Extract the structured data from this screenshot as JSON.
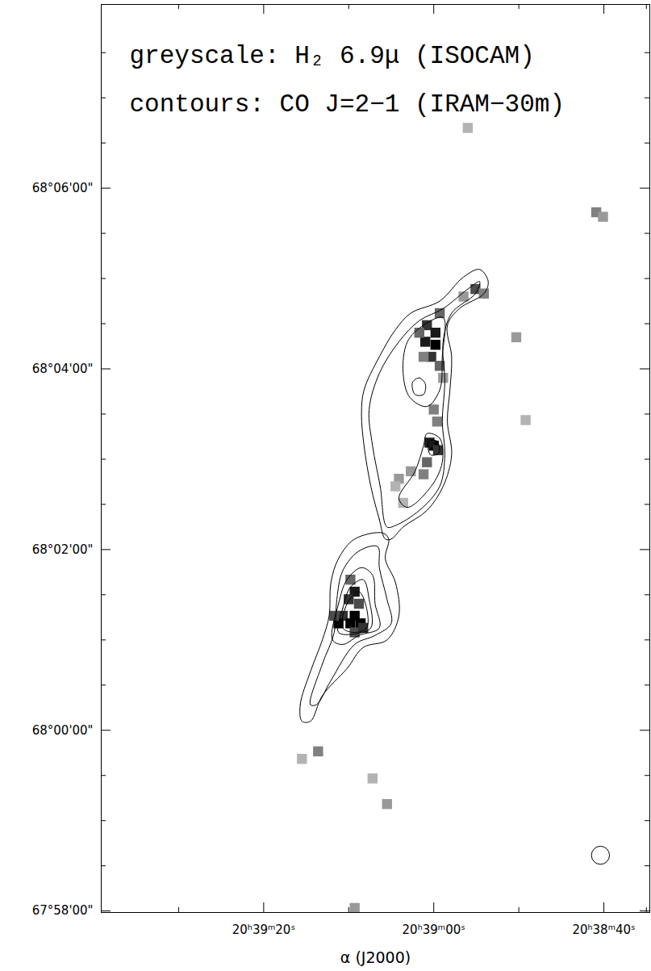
{
  "chart_data": {
    "type": "contour_map",
    "annotations": [
      "greyscale: H₂ 6.9μ (ISOCAM)",
      "contours: CO J=2−1 (IRAM−30m)"
    ],
    "xlabel": "α (J2000)",
    "xlim": [
      74379.1,
      74314.6
    ],
    "ylim": [
      244679,
      245282
    ],
    "xticks": [
      {
        "value": 74360,
        "label": "20ʰ39ᵐ20ˢ"
      },
      {
        "value": 74340,
        "label": "20ʰ39ᵐ00ˢ"
      },
      {
        "value": 74320,
        "label": "20ʰ38ᵐ40ˢ"
      }
    ],
    "yticks": [
      {
        "value": 245160,
        "label": "68°06'00\""
      },
      {
        "value": 245040,
        "label": "68°04'00\""
      },
      {
        "value": 244920,
        "label": "68°02'00\""
      },
      {
        "value": 244800,
        "label": "68°00'00\""
      },
      {
        "value": 244680,
        "label": "67°58'00\""
      }
    ],
    "xminor": [
      74370,
      74350,
      74330,
      74315
    ],
    "yminor": [
      244710,
      244740,
      244770,
      244830,
      244860,
      244890,
      244950,
      244980,
      245010,
      245070,
      245100,
      245130,
      245190,
      245220,
      245250
    ],
    "h2_intensity_range": [
      0,
      1
    ],
    "h2_map": [
      [
        74335.1,
        245093,
        0.7
      ],
      [
        74334.1,
        245090,
        0.5
      ],
      [
        74336.5,
        245088,
        0.4
      ],
      [
        74339.3,
        245077,
        0.6
      ],
      [
        74340.8,
        245069,
        0.8
      ],
      [
        74339.8,
        245064,
        0.9
      ],
      [
        74341.0,
        245058,
        0.9
      ],
      [
        74339.8,
        245056,
        1.0
      ],
      [
        74340.3,
        245048,
        0.8
      ],
      [
        74339.3,
        245042,
        0.6
      ],
      [
        74338.9,
        245034,
        0.4
      ],
      [
        74341.7,
        245064,
        0.6
      ],
      [
        74341.2,
        245048,
        0.5
      ],
      [
        74340.0,
        245013,
        0.5
      ],
      [
        74339.6,
        245005,
        0.5
      ],
      [
        74340.0,
        244989,
        1.0
      ],
      [
        74340.5,
        244991,
        0.9
      ],
      [
        74339.5,
        244986,
        0.8
      ],
      [
        74340.8,
        244978,
        0.6
      ],
      [
        74341.2,
        244970,
        0.5
      ],
      [
        74342.7,
        244972,
        0.4
      ],
      [
        74344.1,
        244967,
        0.4
      ],
      [
        74344.5,
        244962,
        0.3
      ],
      [
        74343.6,
        244951,
        0.3
      ],
      [
        74330.3,
        245061,
        0.4
      ],
      [
        74329.2,
        245006,
        0.3
      ],
      [
        74336.0,
        245200,
        0.3
      ],
      [
        74320.9,
        245144,
        0.5
      ],
      [
        74320.1,
        245141,
        0.4
      ],
      [
        74349.8,
        244900,
        0.6
      ],
      [
        74349.3,
        244892,
        0.9
      ],
      [
        74350.0,
        244887,
        0.8
      ],
      [
        74350.7,
        244876,
        0.8
      ],
      [
        74351.2,
        244871,
        1.0
      ],
      [
        74349.8,
        244871,
        1.0
      ],
      [
        74348.6,
        244871,
        1.0
      ],
      [
        74349.3,
        244876,
        1.0
      ],
      [
        74348.8,
        244884,
        0.7
      ],
      [
        74351.7,
        244876,
        0.7
      ],
      [
        74349.3,
        244865,
        0.7
      ],
      [
        74348.3,
        244868,
        0.8
      ],
      [
        74353.6,
        244786,
        0.5
      ],
      [
        74355.5,
        244781,
        0.3
      ],
      [
        74347.2,
        244768,
        0.3
      ],
      [
        74345.5,
        244751,
        0.4
      ],
      [
        74349.3,
        244682,
        0.4
      ]
    ],
    "co_contours": [
      [
        [
          74345.7,
          244927
        ],
        [
          74346.4,
          244940
        ],
        [
          74347.4,
          244962
        ],
        [
          74348.2,
          244989
        ],
        [
          74348.5,
          245010
        ],
        [
          74348.2,
          245026
        ],
        [
          74346.4,
          245048
        ],
        [
          74344.5,
          245066
        ],
        [
          74342.7,
          245077
        ],
        [
          74339.3,
          245085
        ],
        [
          74336.5,
          245101
        ],
        [
          74334.6,
          245106
        ],
        [
          74333.6,
          245098
        ],
        [
          74334.1,
          245090
        ],
        [
          74337.0,
          245080
        ],
        [
          74338.4,
          245069
        ],
        [
          74337.9,
          245048
        ],
        [
          74338.1,
          245026
        ],
        [
          74338.4,
          245005
        ],
        [
          74337.9,
          244983
        ],
        [
          74338.9,
          244962
        ],
        [
          74340.8,
          244946
        ],
        [
          74343.6,
          244935
        ],
        [
          74345.0,
          244927
        ]
      ],
      [
        [
          74345.5,
          244935
        ],
        [
          74346.3,
          244962
        ],
        [
          74347.2,
          244989
        ],
        [
          74347.6,
          245013
        ],
        [
          74346.4,
          245037
        ],
        [
          74344.1,
          245058
        ],
        [
          74341.7,
          245072
        ],
        [
          74338.9,
          245080
        ],
        [
          74336.0,
          245093
        ],
        [
          74334.6,
          245098
        ],
        [
          74335.1,
          245090
        ],
        [
          74337.9,
          245077
        ],
        [
          74338.9,
          245058
        ],
        [
          74338.7,
          245031
        ],
        [
          74339.0,
          245005
        ],
        [
          74338.7,
          244983
        ],
        [
          74339.3,
          244962
        ],
        [
          74341.7,
          244946
        ],
        [
          74344.5,
          244936
        ]
      ],
      [
        [
          74343.1,
          245058
        ],
        [
          74341.2,
          245069
        ],
        [
          74338.9,
          245074
        ],
        [
          74339.0,
          245048
        ],
        [
          74339.3,
          245026
        ],
        [
          74340.8,
          245015
        ],
        [
          74342.8,
          245021
        ],
        [
          74343.6,
          245037
        ]
      ],
      [
        [
          74342.5,
          245031
        ],
        [
          74341.7,
          245034
        ],
        [
          74341.0,
          245030
        ],
        [
          74341.2,
          245023
        ],
        [
          74342.2,
          245023
        ]
      ],
      [
        [
          74340.8,
          244997
        ],
        [
          74339.3,
          244994
        ],
        [
          74339.0,
          244978
        ],
        [
          74340.3,
          244962
        ],
        [
          74343.1,
          244948
        ],
        [
          74344.1,
          244954
        ],
        [
          74342.2,
          244972
        ],
        [
          74341.2,
          244989
        ]
      ],
      [
        [
          74340.6,
          244992
        ],
        [
          74339.6,
          244992
        ],
        [
          74339.4,
          244984
        ],
        [
          74340.4,
          244983
        ]
      ],
      [
        [
          74355.5,
          244806
        ],
        [
          74355.7,
          244817
        ],
        [
          74354.5,
          244839
        ],
        [
          74353.1,
          244860
        ],
        [
          74352.3,
          244876
        ],
        [
          74352.1,
          244898
        ],
        [
          74351.2,
          244914
        ],
        [
          74349.3,
          244927
        ],
        [
          74346.0,
          244931
        ],
        [
          74345.3,
          244927
        ],
        [
          74345.7,
          244914
        ],
        [
          74344.5,
          244898
        ],
        [
          74344.1,
          244876
        ],
        [
          74345.5,
          244860
        ],
        [
          74348.3,
          244855
        ],
        [
          74350.2,
          244841
        ],
        [
          74353.1,
          244823
        ],
        [
          74354.5,
          244806
        ]
      ],
      [
        [
          74354.5,
          244817
        ],
        [
          74353.1,
          244844
        ],
        [
          74351.7,
          244865
        ],
        [
          74351.4,
          244887
        ],
        [
          74350.7,
          244906
        ],
        [
          74348.8,
          244919
        ],
        [
          74346.6,
          244922
        ],
        [
          74346.4,
          244908
        ],
        [
          74345.5,
          244887
        ],
        [
          74345.0,
          244871
        ],
        [
          74346.9,
          244863
        ],
        [
          74349.3,
          244857
        ],
        [
          74352.1,
          244833
        ],
        [
          74353.8,
          244817
        ]
      ],
      [
        [
          74351.9,
          244860
        ],
        [
          74351.2,
          244884
        ],
        [
          74350.2,
          244900
        ],
        [
          74348.5,
          244908
        ],
        [
          74347.2,
          244903
        ],
        [
          74346.9,
          244884
        ],
        [
          74346.4,
          244868
        ],
        [
          74348.8,
          244863
        ],
        [
          74350.7,
          244857
        ]
      ],
      [
        [
          74351.2,
          244865
        ],
        [
          74350.7,
          244881
        ],
        [
          74349.8,
          244895
        ],
        [
          74348.3,
          244900
        ],
        [
          74347.6,
          244887
        ],
        [
          74347.4,
          244868
        ],
        [
          74349.3,
          244864
        ]
      ],
      [
        [
          74350.7,
          244868
        ],
        [
          74350.2,
          244884
        ],
        [
          74348.8,
          244892
        ],
        [
          74347.9,
          244881
        ],
        [
          74347.9,
          244868
        ],
        [
          74349.3,
          244865
        ]
      ]
    ],
    "beam": {
      "x": 74320.4,
      "y": 244717,
      "diameter": 12
    }
  }
}
